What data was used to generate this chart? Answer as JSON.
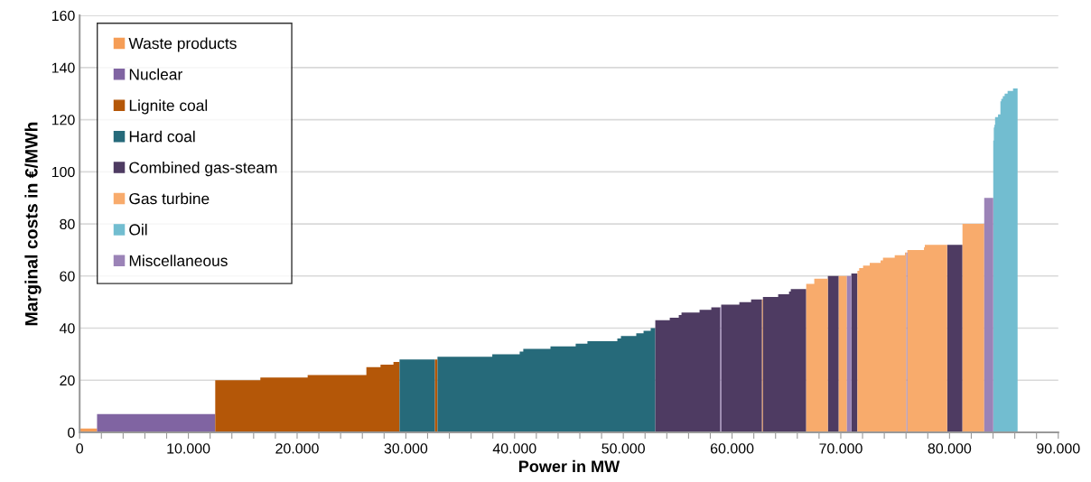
{
  "chart_data": {
    "type": "area",
    "xlabel": "Power in MW",
    "ylabel": "Marginal costs in €/MWh",
    "series": [
      {
        "name": "Waste products",
        "color": "#f59d56",
        "x": [
          0,
          1600,
          null,
          62740,
          62840
        ],
        "values": [
          1.5,
          1.5,
          null,
          51,
          51
        ]
      },
      {
        "name": "Nuclear",
        "color": "#8064a2",
        "x": [
          1600,
          12470
        ],
        "values": [
          7,
          7
        ]
      },
      {
        "name": "Lignite coal",
        "color": "#b45708",
        "x": [
          12470,
          16620,
          16620,
          20970,
          20970,
          26370,
          26370,
          27670,
          27670,
          28860,
          28860,
          29420,
          null,
          32660,
          32910
        ],
        "values": [
          20,
          20,
          21,
          21,
          22,
          22,
          25,
          25,
          26,
          26,
          27,
          27,
          null,
          28,
          28
        ]
      },
      {
        "name": "Hard coal",
        "color": "#266a7a",
        "x": [
          29420,
          32660,
          null,
          32910,
          37950,
          37950,
          40470,
          40470,
          40800,
          40800,
          43300,
          43300,
          45620,
          45620,
          46700,
          46700,
          49450,
          49450,
          49780,
          49780,
          51190,
          51190,
          51860,
          51860,
          52520,
          52520,
          52940
        ],
        "values": [
          28,
          28,
          null,
          29,
          29,
          30,
          30,
          31,
          31,
          32,
          32,
          33,
          33,
          34,
          34,
          35,
          35,
          36,
          36,
          37,
          37,
          38,
          38,
          39,
          39,
          40,
          40
        ]
      },
      {
        "name": "Combined gas-steam",
        "color": "#4e3b62",
        "x": [
          52940,
          54270,
          54270,
          55100,
          55100,
          55350,
          55350,
          57010,
          57010,
          58090,
          58090,
          58920,
          null,
          59000,
          60670,
          60670,
          61750,
          61750,
          62740,
          null,
          62840,
          64240,
          64240,
          65240,
          65240,
          65400,
          65400,
          66820,
          null,
          68810,
          69810,
          null,
          70970,
          71530,
          null,
          79780,
          81190
        ],
        "values": [
          43,
          43,
          44,
          44,
          45,
          45,
          46,
          46,
          47,
          47,
          48,
          48,
          null,
          49,
          49,
          50,
          50,
          51,
          51,
          null,
          52,
          52,
          53,
          53,
          54,
          54,
          55,
          55,
          null,
          60,
          60,
          null,
          61,
          61,
          null,
          72,
          72
        ]
      },
      {
        "name": "Gas turbine",
        "color": "#f8ab6c",
        "x": [
          66820,
          67560,
          67560,
          68810,
          null,
          69810,
          70560,
          null,
          71530,
          71690,
          71690,
          72050,
          72050,
          72660,
          72660,
          73660,
          73660,
          73880,
          73880,
          74960,
          74960,
          75900,
          75900,
          76040,
          null,
          76120,
          77650,
          77650,
          77730,
          77730,
          79780,
          null,
          81190,
          83190
        ],
        "values": [
          57,
          57,
          59,
          59,
          null,
          60,
          60,
          null,
          62,
          62,
          63,
          63,
          64,
          64,
          65,
          65,
          66,
          66,
          67,
          67,
          68,
          68,
          69,
          69,
          null,
          70,
          70,
          71,
          71,
          72,
          72,
          null,
          80,
          80
        ]
      },
      {
        "name": "Oil",
        "color": "#72bdd0",
        "x": [
          84020,
          84070,
          84070,
          84130,
          84130,
          84190,
          84190,
          84460,
          84460,
          84680,
          84680,
          84760,
          84760,
          84900,
          84900,
          85070,
          85070,
          85340,
          85340,
          85840,
          85840,
          86260
        ],
        "values": [
          112,
          112,
          117,
          117,
          118,
          118,
          121,
          121,
          122,
          122,
          127,
          127,
          128,
          128,
          129,
          129,
          130,
          130,
          131,
          131,
          132,
          132
        ]
      },
      {
        "name": "Miscellaneous",
        "color": "#9b83b7",
        "x": [
          58920,
          59000,
          null,
          70560,
          70970,
          null,
          76040,
          76120,
          null,
          83190,
          84020
        ],
        "values": [
          48,
          48,
          null,
          60,
          60,
          null,
          69,
          69,
          null,
          90,
          90
        ]
      }
    ],
    "xlim": [
      0,
      90000
    ],
    "xticks": [
      0,
      {
        "value": 2000,
        "label": null
      },
      {
        "value": 4000,
        "label": null
      },
      {
        "value": 6000,
        "label": null
      },
      {
        "value": 8000,
        "label": null
      },
      {
        "value": 10000,
        "label": "10.000"
      },
      {
        "value": 12000,
        "label": null
      },
      {
        "value": 14000,
        "label": null
      },
      {
        "value": 16000,
        "label": null
      },
      {
        "value": 18000,
        "label": null
      },
      {
        "value": 20000,
        "label": "20.000"
      },
      {
        "value": 22000,
        "label": null
      },
      {
        "value": 24000,
        "label": null
      },
      {
        "value": 26000,
        "label": null
      },
      {
        "value": 28000,
        "label": null
      },
      {
        "value": 30000,
        "label": "30.000"
      },
      {
        "value": 32000,
        "label": null
      },
      {
        "value": 34000,
        "label": null
      },
      {
        "value": 36000,
        "label": null
      },
      {
        "value": 38000,
        "label": null
      },
      {
        "value": 40000,
        "label": "40.000"
      },
      {
        "value": 42000,
        "label": null
      },
      {
        "value": 44000,
        "label": null
      },
      {
        "value": 46000,
        "label": null
      },
      {
        "value": 48000,
        "label": null
      },
      {
        "value": 50000,
        "label": "50.000"
      },
      {
        "value": 52000,
        "label": null
      },
      {
        "value": 54000,
        "label": null
      },
      {
        "value": 56000,
        "label": null
      },
      {
        "value": 58000,
        "label": null
      },
      {
        "value": 60000,
        "label": "60.000"
      },
      {
        "value": 62000,
        "label": null
      },
      {
        "value": 64000,
        "label": null
      },
      {
        "value": 66000,
        "label": null
      },
      {
        "value": 68000,
        "label": null
      },
      {
        "value": 70000,
        "label": "70.000"
      },
      {
        "value": 72000,
        "label": null
      },
      {
        "value": 74000,
        "label": null
      },
      {
        "value": 76000,
        "label": null
      },
      {
        "value": 78000,
        "label": null
      },
      {
        "value": 80000,
        "label": "80.000"
      },
      {
        "value": 82000,
        "label": null
      },
      {
        "value": 84000,
        "label": null
      },
      {
        "value": 86000,
        "label": null
      },
      {
        "value": 88000,
        "label": null
      },
      {
        "value": 90000,
        "label": "90.000"
      }
    ],
    "ylim": [
      0,
      160
    ],
    "yticks": [
      0,
      20,
      40,
      60,
      80,
      100,
      120,
      140,
      160
    ],
    "grid": "y",
    "legend": "top left"
  }
}
